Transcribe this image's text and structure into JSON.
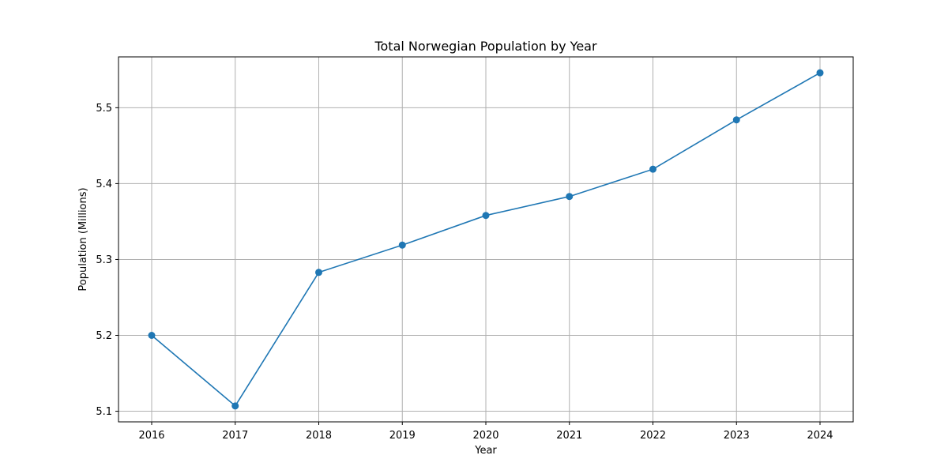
{
  "chart_data": {
    "type": "line",
    "title": "Total Norwegian Population by Year",
    "xlabel": "Year",
    "ylabel": "Population (Millions)",
    "x": [
      "2016",
      "2017",
      "2018",
      "2019",
      "2020",
      "2021",
      "2022",
      "2023",
      "2024"
    ],
    "series": [
      {
        "values": [
          5.2,
          5.107,
          5.283,
          5.319,
          5.358,
          5.383,
          5.419,
          5.484,
          5.546
        ]
      }
    ],
    "ylim": [
      5.086,
      5.567
    ],
    "yticks": [
      "5.1",
      "5.2",
      "5.3",
      "5.4",
      "5.5"
    ],
    "grid": true,
    "markers": true,
    "color": "#1f77b4",
    "grid_color": "#b0b0b0"
  }
}
